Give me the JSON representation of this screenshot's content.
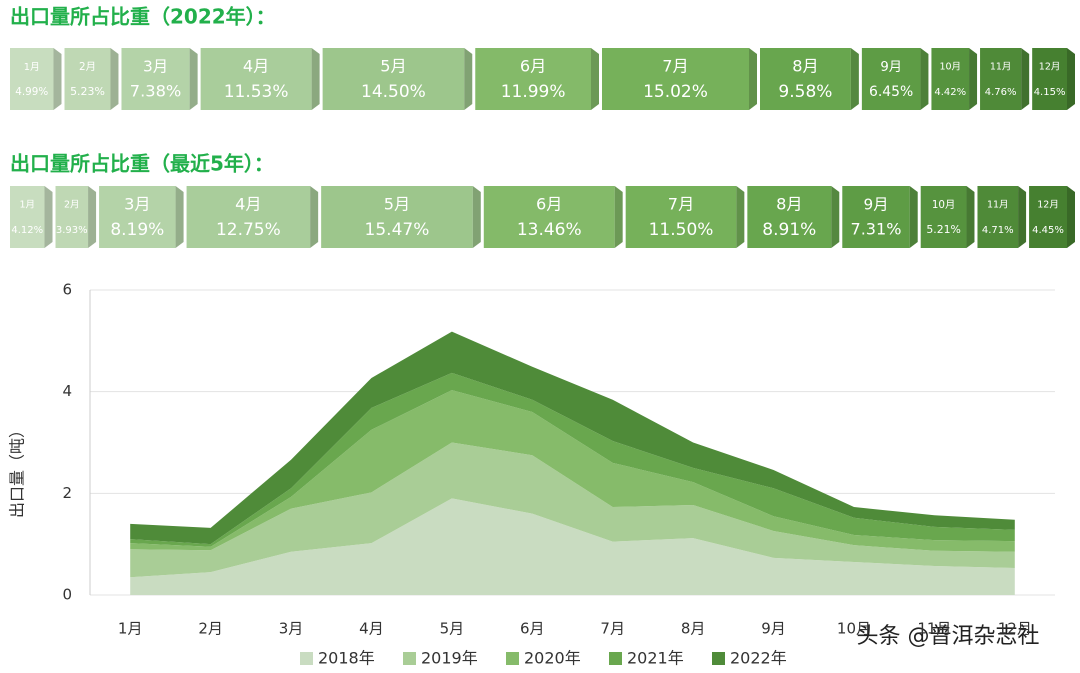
{
  "chart_data": [
    {
      "type": "strip",
      "title": "出口量所占比重（2022年）：",
      "categories": [
        "1月",
        "2月",
        "3月",
        "4月",
        "5月",
        "6月",
        "7月",
        "8月",
        "9月",
        "10月",
        "11月",
        "12月"
      ],
      "values": [
        4.99,
        5.23,
        7.38,
        11.53,
        14.5,
        11.99,
        15.02,
        9.58,
        6.45,
        4.42,
        4.76,
        4.15
      ],
      "value_labels": [
        "4.99%",
        "5.23%",
        "7.38%",
        "11.53%",
        "14.50%",
        "11.99%",
        "15.02%",
        "9.58%",
        "6.45%",
        "4.42%",
        "4.76%",
        "4.15%"
      ],
      "colors": [
        "#c8ddbf",
        "#bfd8b4",
        "#b4d3a8",
        "#a9cd9b",
        "#9dc68c",
        "#84ba69",
        "#76b15a",
        "#68a64e",
        "#5e9c45",
        "#56933e",
        "#4f8a38",
        "#468030"
      ]
    },
    {
      "type": "strip",
      "title": "出口量所占比重（最近5年）：",
      "categories": [
        "1月",
        "2月",
        "3月",
        "4月",
        "5月",
        "6月",
        "7月",
        "8月",
        "9月",
        "10月",
        "11月",
        "12月"
      ],
      "values": [
        4.12,
        3.93,
        8.19,
        12.75,
        15.47,
        13.46,
        11.5,
        8.91,
        7.31,
        5.21,
        4.71,
        4.45
      ],
      "value_labels": [
        "4.12%",
        "3.93%",
        "8.19%",
        "12.75%",
        "15.47%",
        "13.46%",
        "11.50%",
        "8.91%",
        "7.31%",
        "5.21%",
        "4.71%",
        "4.45%"
      ],
      "colors": [
        "#c8ddbf",
        "#bfd8b4",
        "#b4d3a8",
        "#a9cd9b",
        "#9dc68c",
        "#84ba69",
        "#76b15a",
        "#68a64e",
        "#5e9c45",
        "#56933e",
        "#4f8a38",
        "#468030"
      ]
    },
    {
      "type": "area",
      "ylabel": "出口量（吨）",
      "watermark": "头条 @普洱杂志社",
      "categories": [
        "1月",
        "2月",
        "3月",
        "4月",
        "5月",
        "6月",
        "7月",
        "8月",
        "9月",
        "10月",
        "11月",
        "12月"
      ],
      "ylim": [
        0,
        6
      ],
      "yticks": [
        0,
        2,
        4,
        6
      ],
      "grid": true,
      "stacked": true,
      "series": [
        {
          "name": "2018年",
          "color": "#c9dcc1",
          "values": [
            0.35,
            0.45,
            0.85,
            1.02,
            1.9,
            1.6,
            1.05,
            1.12,
            0.73,
            0.65,
            0.57,
            0.53
          ]
        },
        {
          "name": "2019年",
          "color": "#a9cd96",
          "values": [
            0.55,
            0.43,
            0.85,
            1.0,
            1.1,
            1.15,
            0.68,
            0.65,
            0.53,
            0.33,
            0.3,
            0.32
          ]
        },
        {
          "name": "2020年",
          "color": "#86bb6a",
          "values": [
            0.12,
            0.07,
            0.23,
            1.23,
            1.03,
            0.85,
            0.87,
            0.45,
            0.29,
            0.2,
            0.21,
            0.21
          ]
        },
        {
          "name": "2021年",
          "color": "#69a74e",
          "values": [
            0.08,
            0.05,
            0.17,
            0.43,
            0.34,
            0.24,
            0.43,
            0.28,
            0.55,
            0.34,
            0.26,
            0.22
          ]
        },
        {
          "name": "2022年",
          "color": "#4f8b39",
          "values": [
            0.3,
            0.32,
            0.56,
            0.59,
            0.81,
            0.65,
            0.81,
            0.5,
            0.36,
            0.21,
            0.23,
            0.2
          ]
        }
      ]
    }
  ]
}
